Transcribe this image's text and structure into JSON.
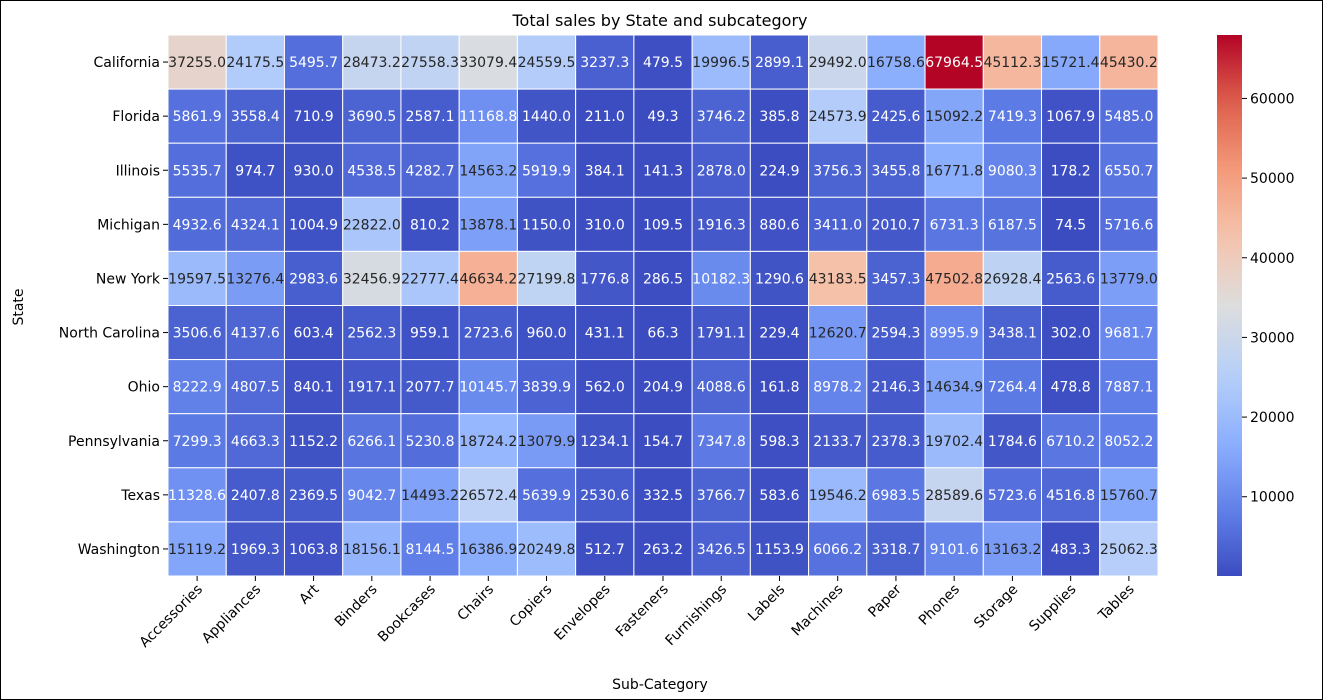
{
  "chart_data": {
    "type": "heatmap",
    "title": "Total sales by State and subcategory",
    "xlabel": "Sub-Category",
    "ylabel": "State",
    "x_categories": [
      "Accessories",
      "Appliances",
      "Art",
      "Binders",
      "Bookcases",
      "Chairs",
      "Copiers",
      "Envelopes",
      "Fasteners",
      "Furnishings",
      "Labels",
      "Machines",
      "Paper",
      "Phones",
      "Storage",
      "Supplies",
      "Tables"
    ],
    "y_categories": [
      "California",
      "Florida",
      "Illinois",
      "Michigan",
      "New York",
      "North Carolina",
      "Ohio",
      "Pennsylvania",
      "Texas",
      "Washington"
    ],
    "values": [
      [
        37255.0,
        24175.5,
        5495.7,
        28473.2,
        27558.3,
        33079.4,
        24559.5,
        3237.3,
        479.5,
        19996.5,
        2899.1,
        29492.0,
        16758.6,
        67964.5,
        45112.3,
        15721.4,
        45430.2
      ],
      [
        5861.9,
        3558.4,
        710.9,
        3690.5,
        2587.1,
        11168.8,
        1440.0,
        211.0,
        49.3,
        3746.2,
        385.8,
        24573.9,
        2425.6,
        15092.2,
        7419.3,
        1067.9,
        5485.0
      ],
      [
        5535.7,
        974.7,
        930.0,
        4538.5,
        4282.7,
        14563.2,
        5919.9,
        384.1,
        141.3,
        2878.0,
        224.9,
        3756.3,
        3455.8,
        16771.8,
        9080.3,
        178.2,
        6550.7
      ],
      [
        4932.6,
        4324.1,
        1004.9,
        22822.0,
        810.2,
        13878.1,
        1150.0,
        310.0,
        109.5,
        1916.3,
        880.6,
        3411.0,
        2010.7,
        6731.3,
        6187.5,
        74.5,
        5716.6
      ],
      [
        19597.5,
        13276.4,
        2983.6,
        32456.9,
        22777.4,
        46634.2,
        27199.8,
        1776.8,
        286.5,
        10182.3,
        1290.6,
        43183.5,
        3457.3,
        47502.8,
        26928.4,
        2563.6,
        13779.0
      ],
      [
        3506.6,
        4137.6,
        603.4,
        2562.3,
        959.1,
        2723.6,
        960.0,
        431.1,
        66.3,
        1791.1,
        229.4,
        12620.7,
        2594.3,
        8995.9,
        3438.1,
        302.0,
        9681.7
      ],
      [
        8222.9,
        4807.5,
        840.1,
        1917.1,
        2077.7,
        10145.7,
        3839.9,
        562.0,
        204.9,
        4088.6,
        161.8,
        8978.2,
        2146.3,
        14634.9,
        7264.4,
        478.8,
        7887.1
      ],
      [
        7299.3,
        4663.3,
        1152.2,
        6266.1,
        5230.8,
        18724.2,
        13079.9,
        1234.1,
        154.7,
        7347.8,
        598.3,
        2133.7,
        2378.3,
        19702.4,
        1784.6,
        6710.2,
        8052.2
      ],
      [
        11328.6,
        2407.8,
        2369.5,
        9042.7,
        14493.2,
        26572.4,
        5639.9,
        2530.6,
        332.5,
        3766.7,
        583.6,
        19546.2,
        6983.5,
        28589.6,
        5723.6,
        4516.8,
        15760.7
      ],
      [
        15119.2,
        1969.3,
        1063.8,
        18156.1,
        8144.5,
        16386.9,
        20249.8,
        512.7,
        263.2,
        3426.5,
        1153.9,
        6066.2,
        3318.7,
        9101.6,
        13163.2,
        483.3,
        25062.3
      ]
    ],
    "value_format": "one decimal place",
    "colormap": "coolwarm",
    "vmin": 49.3,
    "vmax": 67964.5,
    "colorbar_ticks": [
      10000,
      20000,
      30000,
      40000,
      50000,
      60000
    ],
    "grid": true,
    "grid_color": "#ffffff",
    "text_colors": {
      "dark_cell": "#ffffff",
      "light_cell": "#262626"
    }
  }
}
